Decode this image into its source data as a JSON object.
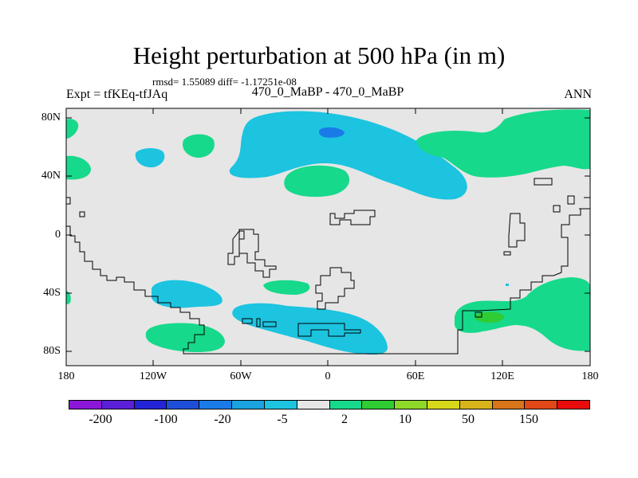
{
  "title": "Height perturbation at 500 hPa (in m)",
  "stats": "rmsd= 1.55089 diff= -1.17251e-08",
  "left_label": "Expt = tfKEq-tfJAq",
  "center_label": "470_0_MaBP - 470_0_MaBP",
  "right_label": "ANN",
  "y_ticks": [
    "80N",
    "40N",
    "0",
    "40S",
    "80S"
  ],
  "x_ticks": [
    "180",
    "120W",
    "60W",
    "0",
    "60E",
    "120E",
    "180"
  ],
  "colorbar": {
    "colors": [
      "#8b16d8",
      "#5b1fd8",
      "#2323d8",
      "#1f4fd8",
      "#1a7be8",
      "#1aa3e0",
      "#1cc4e0",
      "#e6e6e6",
      "#16d98b",
      "#2fcc33",
      "#8ed82a",
      "#d8d81a",
      "#d8b41a",
      "#d8741a",
      "#e24717",
      "#e80c0c"
    ],
    "tick_labels": [
      "-200",
      "-100",
      "-20",
      "-5",
      "2",
      "10",
      "50",
      "150"
    ]
  },
  "map_colors": {
    "background": "#e6e6e6",
    "light_blue": "#1cc4e0",
    "mid_blue": "#1a7be8",
    "green": "#16d98b",
    "dark_green": "#2fcc33",
    "coast": "#000000"
  }
}
